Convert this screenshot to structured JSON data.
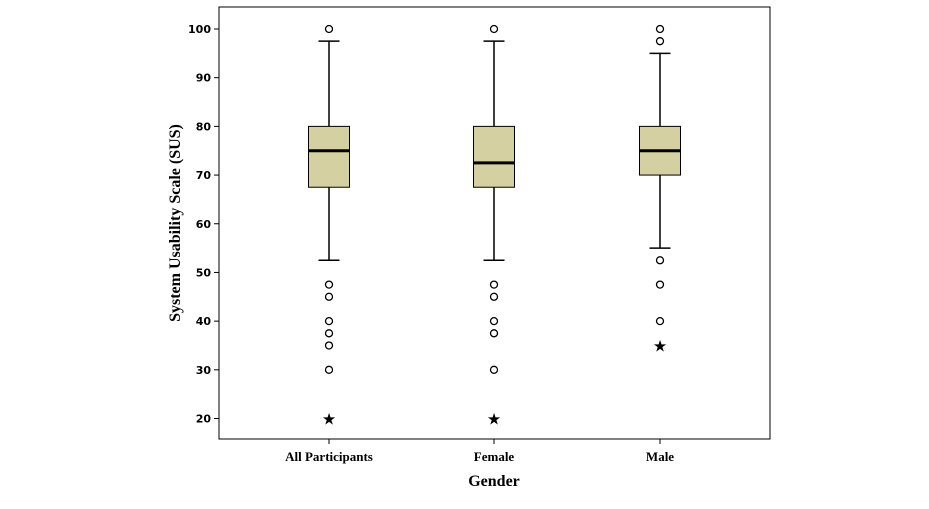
{
  "chart_data": {
    "type": "boxplot",
    "title": "",
    "xlabel": "Gender",
    "ylabel": "System Usability Scale (SUS)",
    "ylim": [
      15,
      105
    ],
    "yticks": [
      20,
      30,
      40,
      50,
      60,
      70,
      80,
      90,
      100
    ],
    "grid": false,
    "colors": {
      "box_fill": "#d4d0a1",
      "stroke": "#000000",
      "background": "#ffffff"
    },
    "categories": [
      "All Participants",
      "Female",
      "Male"
    ],
    "series": [
      {
        "name": "All Participants",
        "whisker_low": 52.5,
        "q1": 67.5,
        "median": 75,
        "q3": 80,
        "whisker_high": 97.5,
        "outliers": [
          100,
          47.5,
          45,
          40,
          37.5,
          35,
          30
        ],
        "extremes": [
          20
        ]
      },
      {
        "name": "Female",
        "whisker_low": 52.5,
        "q1": 67.5,
        "median": 72.5,
        "q3": 80,
        "whisker_high": 97.5,
        "outliers": [
          100,
          47.5,
          45,
          40,
          37.5,
          30
        ],
        "extremes": [
          20
        ]
      },
      {
        "name": "Male",
        "whisker_low": 55,
        "q1": 70,
        "median": 75,
        "q3": 80,
        "whisker_high": 95,
        "outliers": [
          100,
          97.5,
          52.5,
          47.5,
          40
        ],
        "extremes": [
          35
        ]
      }
    ]
  }
}
